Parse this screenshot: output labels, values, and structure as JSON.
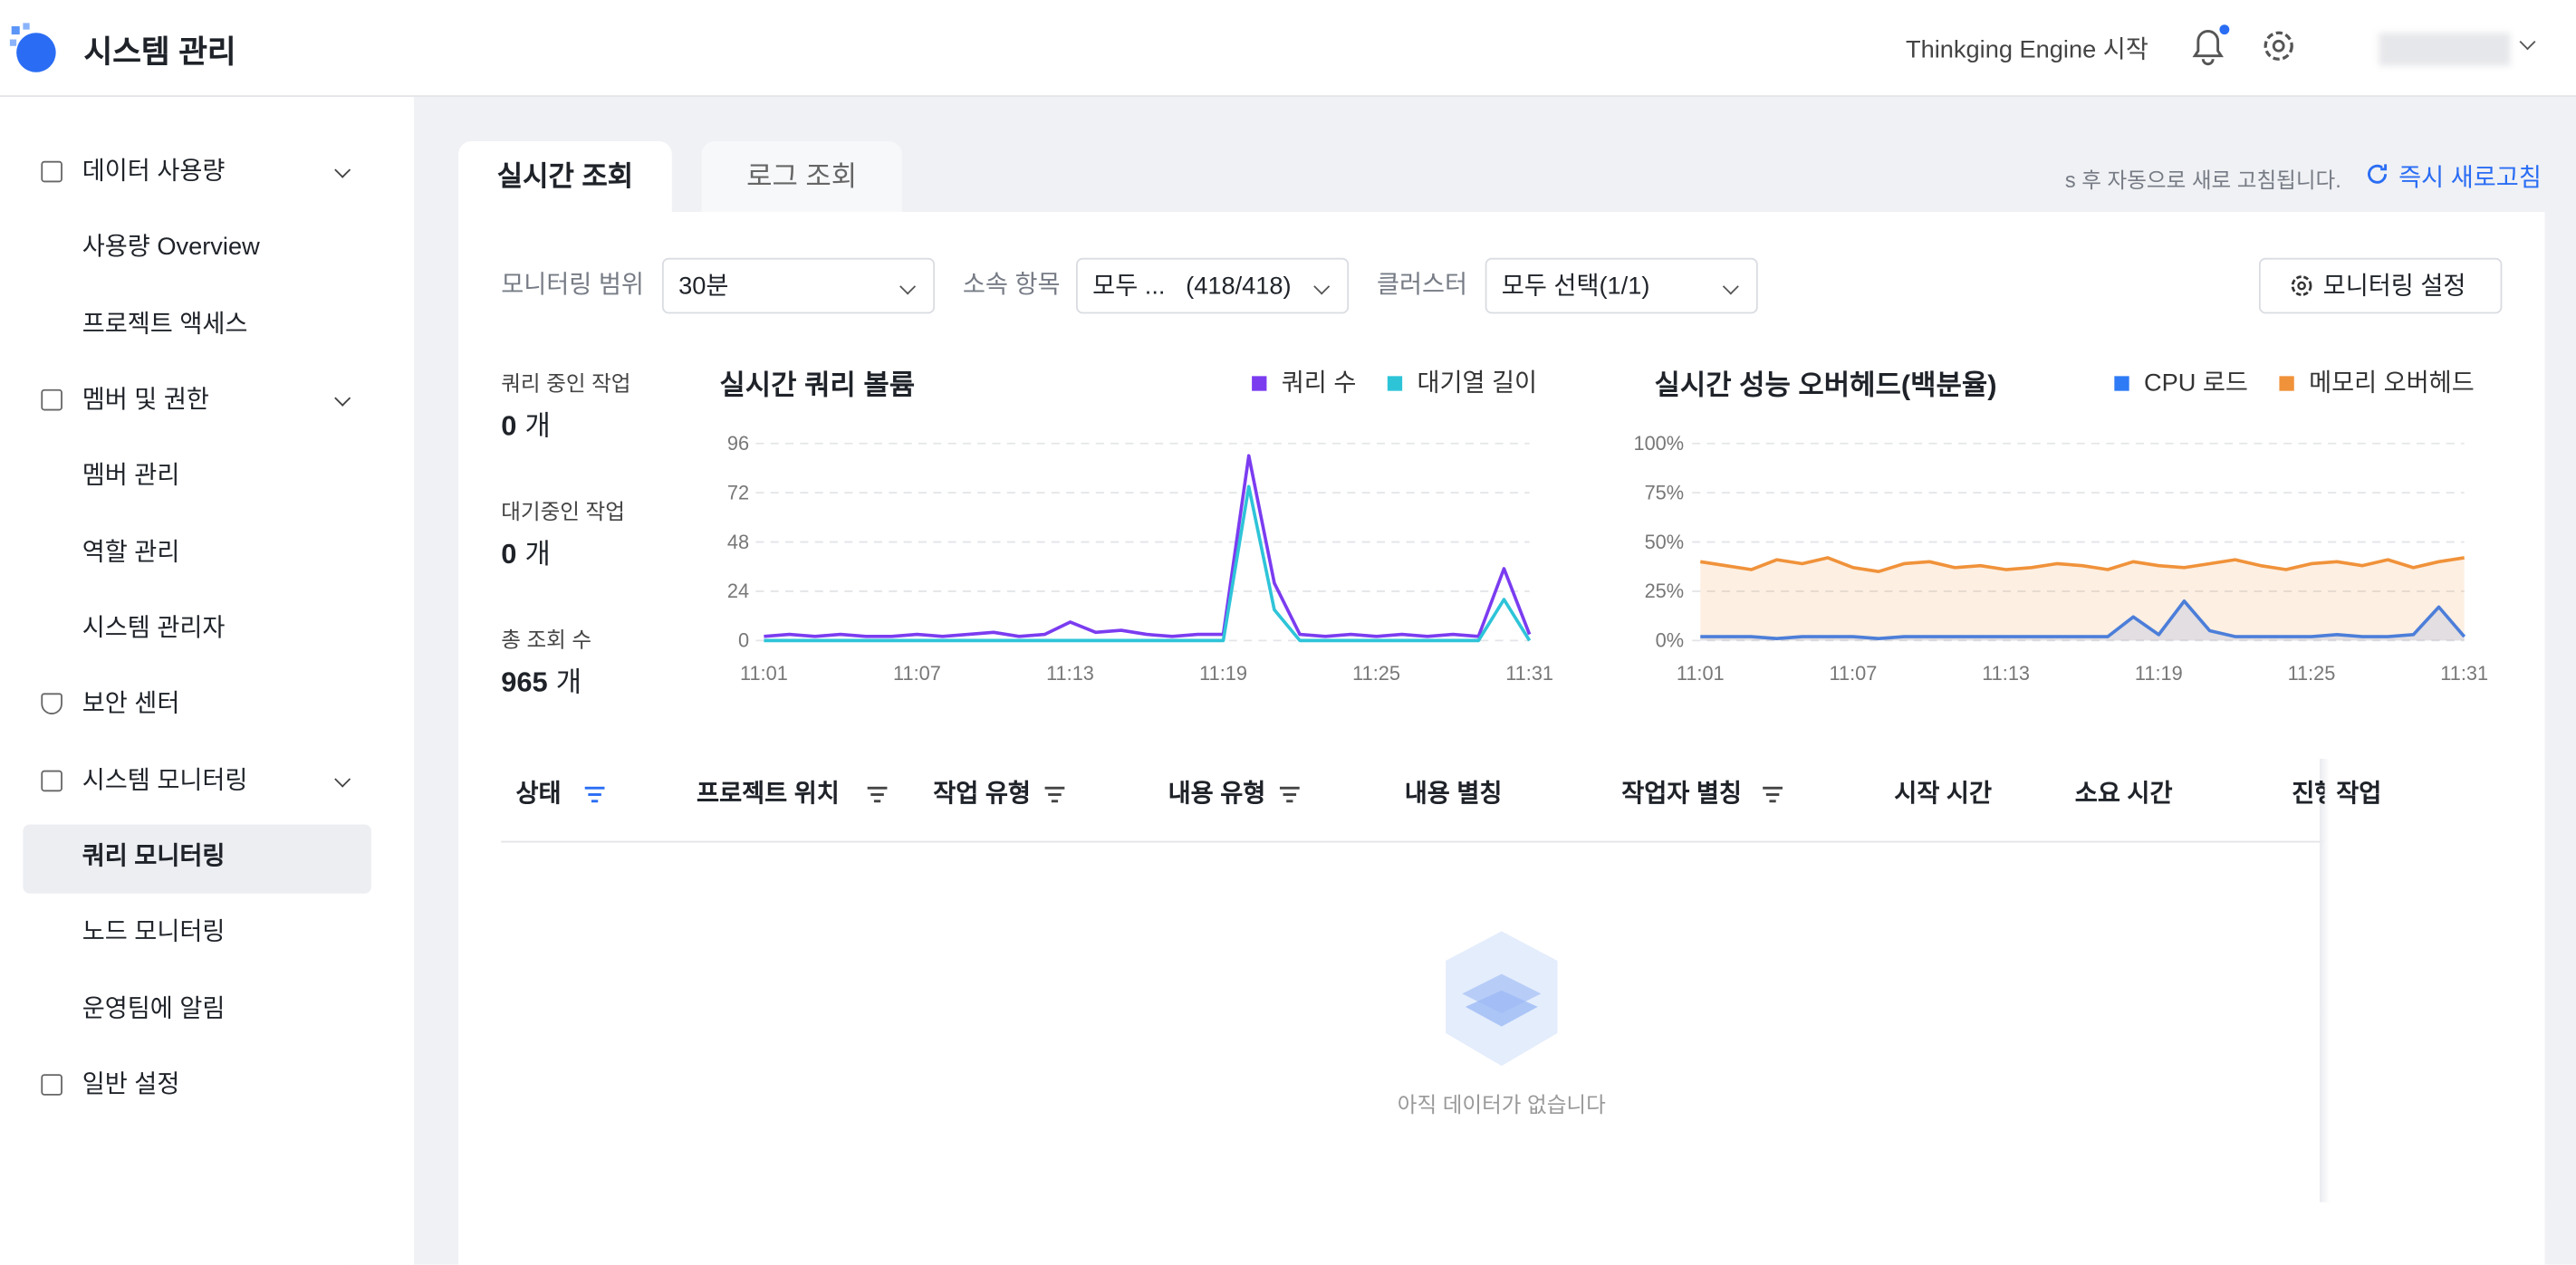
{
  "header": {
    "title": "시스템 관리",
    "engine": "Thinkging Engine 시작"
  },
  "sidebar": {
    "items": [
      "데이터 사용량",
      "사용량 Overview",
      "프로젝트 액세스",
      "멤버 및 권한",
      "멤버 관리",
      "역할 관리",
      "시스템 관리자",
      "보안 센터",
      "시스템 모니터링",
      "쿼리 모니터링",
      "노드 모니터링",
      "운영팀에 알림",
      "일반 설정"
    ]
  },
  "tabs": [
    "실시간 조회",
    "로그 조회"
  ],
  "refresh_note": "s 후 자동으로 새로 고침됩니다.",
  "refresh_button": "즉시 새로고침",
  "filters": [
    {
      "label": "모니터링 범위",
      "value": "30분"
    },
    {
      "label": "소속 항목",
      "value": "모두 ...   (418/418)"
    },
    {
      "label": "클러스터",
      "value": "모두 선택(1/1)"
    }
  ],
  "settings_button": "모니터링 설정",
  "stats": [
    {
      "label": "쿼리 중인 작업",
      "value": 0,
      "unit": "개"
    },
    {
      "label": "대기중인 작업",
      "value": 0,
      "unit": "개"
    },
    {
      "label": "총 조회 수",
      "value": 965,
      "unit": "개"
    }
  ],
  "chart_data": [
    {
      "type": "line",
      "title": "실시간 쿼리 볼륨",
      "grid": true,
      "area": false,
      "categories": [
        "11:01",
        null,
        null,
        null,
        null,
        null,
        "11:07",
        null,
        null,
        null,
        null,
        null,
        "11:13",
        null,
        null,
        null,
        null,
        null,
        "11:19",
        null,
        null,
        null,
        null,
        null,
        "11:25",
        null,
        null,
        null,
        null,
        null,
        "11:31"
      ],
      "ylim": [
        0,
        96
      ],
      "yticks": [
        0,
        24,
        48,
        72,
        96
      ],
      "series": [
        {
          "name": "쿼리 수",
          "color": "#7b3cf0",
          "values": [
            2,
            3,
            2,
            3,
            2,
            2,
            3,
            2,
            3,
            4,
            2,
            3,
            9,
            4,
            5,
            3,
            2,
            3,
            3,
            90,
            28,
            3,
            2,
            3,
            2,
            3,
            2,
            3,
            2,
            35,
            3
          ]
        },
        {
          "name": "대기열 길이",
          "color": "#2ec4d8",
          "values": [
            0,
            0,
            0,
            0,
            0,
            0,
            0,
            0,
            0,
            0,
            0,
            0,
            0,
            0,
            0,
            0,
            0,
            0,
            0,
            75,
            15,
            0,
            0,
            0,
            0,
            0,
            0,
            0,
            0,
            20,
            0
          ]
        }
      ]
    },
    {
      "type": "line",
      "title": "실시간 성능 오버헤드(백분율)",
      "grid": true,
      "area": true,
      "categories": [
        "11:01",
        null,
        null,
        null,
        null,
        null,
        "11:07",
        null,
        null,
        null,
        null,
        null,
        "11:13",
        null,
        null,
        null,
        null,
        null,
        "11:19",
        null,
        null,
        null,
        null,
        null,
        "11:25",
        null,
        null,
        null,
        null,
        null,
        "11:31"
      ],
      "ylim": [
        0,
        100
      ],
      "yticks": [
        {
          "value": 0,
          "label": "0%"
        },
        {
          "value": 25,
          "label": "25%"
        },
        {
          "value": 50,
          "label": "50%"
        },
        {
          "value": 75,
          "label": "75%"
        },
        {
          "value": 100,
          "label": "100%"
        }
      ],
      "series": [
        {
          "name": "CPU 로드",
          "color": "#2f7bf5",
          "values": [
            2,
            2,
            2,
            1,
            2,
            2,
            2,
            1,
            2,
            2,
            2,
            2,
            2,
            2,
            2,
            2,
            2,
            12,
            3,
            20,
            5,
            2,
            2,
            2,
            2,
            3,
            2,
            2,
            3,
            17,
            2
          ]
        },
        {
          "name": "메모리 오버헤드",
          "color": "#f0923a",
          "values": [
            40,
            38,
            36,
            41,
            39,
            42,
            37,
            35,
            39,
            40,
            37,
            38,
            36,
            37,
            39,
            38,
            36,
            40,
            38,
            37,
            39,
            41,
            38,
            36,
            39,
            40,
            38,
            41,
            37,
            40,
            42
          ]
        }
      ]
    }
  ],
  "table": {
    "columns": [
      "상태",
      "프로젝트 위치",
      "작업 유형",
      "내용 유형",
      "내용 별칭",
      "작업자 별칭",
      "시작 시간",
      "소요 시간",
      "진행",
      "작업"
    ],
    "empty": "아직 데이터가 없습니다"
  }
}
